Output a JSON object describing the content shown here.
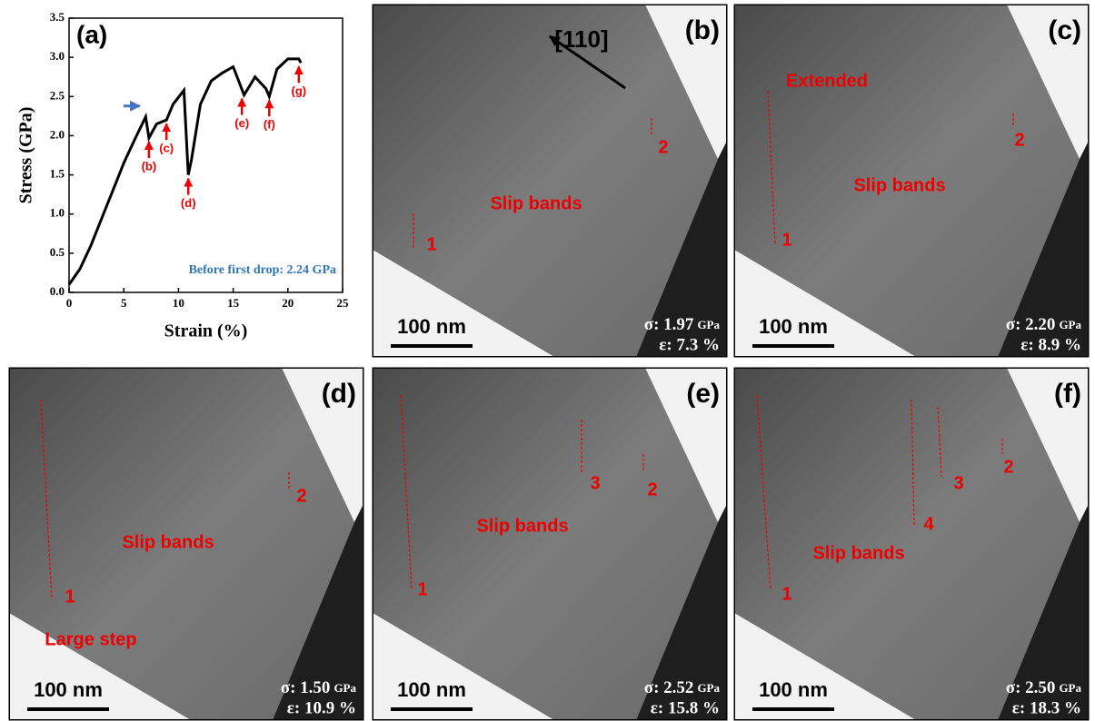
{
  "chart_data": {
    "type": "line",
    "panel_label": "(a)",
    "xlabel": "Strain (%)",
    "ylabel": "Stress (GPa)",
    "annotation": "Before first drop: 2.24 GPa",
    "x": [
      0,
      1,
      2,
      3,
      4,
      5,
      6,
      7,
      7.3,
      8,
      8.9,
      9.5,
      10.5,
      10.9,
      11.2,
      12,
      13,
      14,
      15,
      16,
      17,
      18,
      18.3,
      19,
      20,
      21,
      21.2
    ],
    "series": [
      {
        "color": "#000000",
        "values": [
          0.1,
          0.3,
          0.6,
          0.95,
          1.3,
          1.65,
          1.95,
          2.24,
          1.97,
          2.15,
          2.2,
          2.4,
          2.58,
          1.5,
          1.7,
          2.4,
          2.7,
          2.8,
          2.88,
          2.52,
          2.75,
          2.6,
          2.5,
          2.85,
          2.98,
          2.98,
          2.93
        ]
      }
    ],
    "markers": [
      {
        "label": "(b)",
        "x": 7.3,
        "y": 1.97
      },
      {
        "label": "(c)",
        "x": 8.9,
        "y": 2.2
      },
      {
        "label": "(d)",
        "x": 10.9,
        "y": 1.5
      },
      {
        "label": "(e)",
        "x": 15.8,
        "y": 2.52
      },
      {
        "label": "(f)",
        "x": 18.3,
        "y": 2.5
      },
      {
        "label": "(g)",
        "x": 21,
        "y": 2.93
      }
    ],
    "first_drop": {
      "x": 6.8,
      "y": 2.24
    },
    "xlim": [
      0,
      25
    ],
    "ylim": [
      0,
      3.5
    ],
    "xticks": [
      0,
      5,
      10,
      15,
      20,
      25
    ],
    "yticks": [
      {
        "value": 0,
        "label": "0.0"
      },
      0.5,
      {
        "value": 1,
        "label": "1.0"
      },
      1.5,
      {
        "value": 2,
        "label": "2.0"
      },
      2.5,
      {
        "value": 3,
        "label": "3.0"
      },
      3.5
    ]
  },
  "panels": [
    {
      "label": "(b)",
      "scale": "100 nm",
      "stress": "σ: 1.97",
      "stress_unit": "GPa",
      "strain": "ε: 7.3 %",
      "texts": [
        "[110]",
        "Slip bands",
        "1",
        "2"
      ]
    },
    {
      "label": "(c)",
      "scale": "100 nm",
      "stress": "σ: 2.20",
      "stress_unit": "GPa",
      "strain": "ε: 8.9 %",
      "texts": [
        "Extended",
        "Slip bands",
        "1",
        "2"
      ]
    },
    {
      "label": "(d)",
      "scale": "100 nm",
      "stress": "σ: 1.50",
      "stress_unit": "GPa",
      "strain": "ε: 10.9 %",
      "texts": [
        "Slip bands",
        "1",
        "2",
        "Large step"
      ]
    },
    {
      "label": "(e)",
      "scale": "100 nm",
      "stress": "σ: 2.52",
      "stress_unit": "GPa",
      "strain": "ε: 15.8 %",
      "texts": [
        "Slip bands",
        "1",
        "3",
        "2"
      ]
    },
    {
      "label": "(f)",
      "scale": "100 nm",
      "stress": "σ: 2.50",
      "stress_unit": "GPa",
      "strain": "ε: 18.3 %",
      "texts": [
        "Slip bands",
        "1",
        "4",
        "3",
        "2"
      ]
    }
  ]
}
